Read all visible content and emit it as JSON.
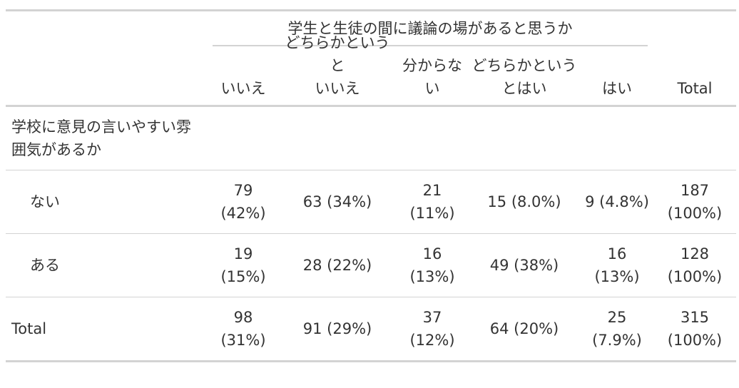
{
  "table": {
    "spanner": "学生と生徒の間に議論の場があると思うか",
    "columns": [
      [
        "いいえ"
      ],
      [
        "どちらかというと",
        "いいえ"
      ],
      [
        "分からな",
        "い"
      ],
      [
        "どちらかという",
        "とはい"
      ],
      [
        "はい"
      ],
      [
        "Total"
      ]
    ],
    "group_label": [
      "学校に意見の言いやすい雰",
      "囲気があるか"
    ],
    "rows": [
      {
        "label": "ない",
        "cells": [
          [
            "79",
            "(42%)"
          ],
          [
            "63 (34%)"
          ],
          [
            "21",
            "(11%)"
          ],
          [
            "15 (8.0%)"
          ],
          [
            "9 (4.8%)"
          ],
          [
            "187",
            "(100%)"
          ]
        ]
      },
      {
        "label": "ある",
        "cells": [
          [
            "19",
            "(15%)"
          ],
          [
            "28 (22%)"
          ],
          [
            "16",
            "(13%)"
          ],
          [
            "49 (38%)"
          ],
          [
            "16",
            "(13%)"
          ],
          [
            "128",
            "(100%)"
          ]
        ]
      },
      {
        "label": "Total",
        "cells": [
          [
            "98",
            "(31%)"
          ],
          [
            "91 (29%)"
          ],
          [
            "37",
            "(12%)"
          ],
          [
            "64 (20%)"
          ],
          [
            "25",
            "(7.9%)"
          ],
          [
            "315",
            "(100%)"
          ]
        ]
      }
    ]
  }
}
